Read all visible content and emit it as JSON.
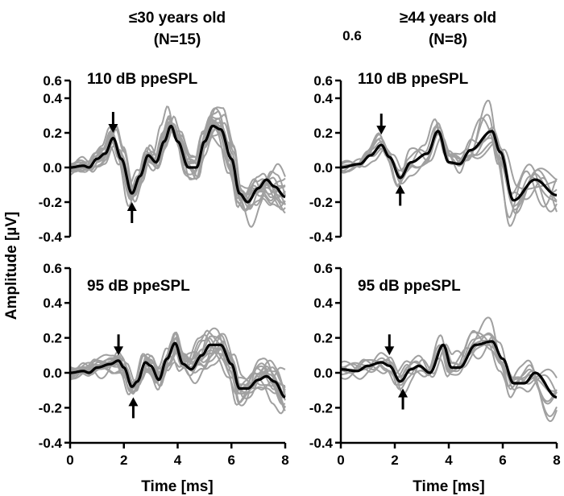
{
  "chart_data": [
    {
      "type": "line",
      "group_title": "≤30 years old",
      "group_n": "(N=15)",
      "panel_label": "110 dB ppeSPL",
      "n_traces": 15,
      "xlabel": "",
      "ylabel": "Amplitude [µV]",
      "xlim": [
        0,
        8
      ],
      "ylim": [
        -0.4,
        0.6
      ],
      "yticks": [
        "-0.4",
        "-0.2",
        "0.0",
        "0.2",
        "0.4",
        "0.6"
      ],
      "mean": {
        "t": [
          0,
          0.5,
          0.7,
          1.0,
          1.3,
          1.6,
          1.9,
          2.3,
          2.6,
          2.9,
          3.2,
          3.5,
          3.75,
          4.0,
          4.4,
          4.7,
          5.0,
          5.3,
          5.6,
          6.0,
          6.3,
          6.6,
          7.0,
          7.3,
          7.6,
          8.0
        ],
        "v": [
          0,
          0.01,
          0,
          0.05,
          0.08,
          0.17,
          0.05,
          -0.15,
          -0.05,
          0.07,
          0.03,
          0.15,
          0.24,
          0.15,
          0,
          0,
          0.15,
          0.24,
          0.22,
          0.05,
          -0.15,
          -0.2,
          -0.12,
          -0.07,
          -0.11,
          -0.17
        ]
      },
      "arrows": [
        {
          "dir": "down",
          "t": 1.6,
          "v": 0.2
        },
        {
          "dir": "up",
          "t": 2.3,
          "v": -0.2
        }
      ]
    },
    {
      "type": "line",
      "group_title": "≥44 years old",
      "group_n": "(N=8)",
      "panel_label": "110 dB ppeSPL",
      "n_traces": 8,
      "xlim": [
        0,
        8
      ],
      "ylim": [
        -0.4,
        0.6
      ],
      "yticks": [
        "-0.4",
        "-0.2",
        "0.0",
        "0.2",
        "0.4",
        "0.6"
      ],
      "mean": {
        "t": [
          0,
          0.7,
          1.1,
          1.5,
          1.8,
          2.2,
          2.6,
          3.2,
          3.6,
          4.0,
          4.4,
          4.8,
          5.6,
          5.9,
          6.4,
          7.2,
          8.0
        ],
        "v": [
          0,
          0.02,
          0.07,
          0.13,
          0.06,
          -0.06,
          0.03,
          0.08,
          0.21,
          0.03,
          0.02,
          0.1,
          0.21,
          0.09,
          -0.19,
          -0.07,
          -0.16
        ]
      },
      "arrows": [
        {
          "dir": "down",
          "t": 1.5,
          "v": 0.19
        },
        {
          "dir": "up",
          "t": 2.2,
          "v": -0.1
        }
      ]
    },
    {
      "type": "line",
      "panel_label": "95 dB ppeSPL",
      "n_traces": 15,
      "xlabel": "Time [ms]",
      "xlim": [
        0,
        8
      ],
      "ylim": [
        -0.4,
        0.6
      ],
      "xticks": [
        "0",
        "2",
        "4",
        "6",
        "8"
      ],
      "yticks": [
        "-0.4",
        "-0.2",
        "0.0",
        "0.2",
        "0.4",
        "0.6"
      ],
      "mean": {
        "t": [
          0,
          0.5,
          0.7,
          1.0,
          1.5,
          1.8,
          2.0,
          2.3,
          2.5,
          2.8,
          3.0,
          3.3,
          3.6,
          3.9,
          4.2,
          4.5,
          4.9,
          5.2,
          5.6,
          6.0,
          6.3,
          6.6,
          7.0,
          7.3,
          7.6,
          8.0
        ],
        "v": [
          0,
          0.01,
          0,
          0.03,
          0.05,
          0.07,
          0.03,
          -0.08,
          -0.05,
          0.06,
          0.04,
          -0.04,
          0.08,
          0.17,
          0.05,
          0.02,
          0.1,
          0.16,
          0.16,
          0.05,
          -0.09,
          -0.09,
          -0.04,
          -0.02,
          -0.05,
          -0.14
        ]
      },
      "arrows": [
        {
          "dir": "down",
          "t": 1.8,
          "v": 0.1
        },
        {
          "dir": "up",
          "t": 2.35,
          "v": -0.14
        }
      ]
    },
    {
      "type": "line",
      "panel_label": "95 dB ppeSPL",
      "n_traces": 8,
      "xlabel": "Time [ms]",
      "xlim": [
        0,
        8
      ],
      "ylim": [
        -0.4,
        0.6
      ],
      "xticks": [
        "0",
        "2",
        "4",
        "6",
        "8"
      ],
      "yticks": [
        "-0.4",
        "-0.2",
        "0.0",
        "0.2",
        "0.4",
        "0.6"
      ],
      "mean": {
        "t": [
          0,
          0.6,
          1.0,
          1.5,
          1.8,
          2.2,
          2.6,
          2.9,
          3.3,
          3.8,
          4.1,
          4.4,
          5.0,
          5.6,
          6.0,
          6.4,
          6.8,
          7.2,
          8.0
        ],
        "v": [
          0.02,
          0.01,
          0.04,
          0.06,
          0.04,
          -0.05,
          0.02,
          0.04,
          0,
          0.16,
          0.03,
          0.03,
          0.16,
          0.18,
          0.08,
          -0.06,
          -0.06,
          0,
          -0.14
        ]
      },
      "arrows": [
        {
          "dir": "down",
          "t": 1.8,
          "v": 0.1
        },
        {
          "dir": "up",
          "t": 2.3,
          "v": -0.09
        }
      ]
    }
  ],
  "stray_label": "0.6",
  "colors": {
    "individual": "#a0a0a0",
    "mean": "#000000"
  }
}
